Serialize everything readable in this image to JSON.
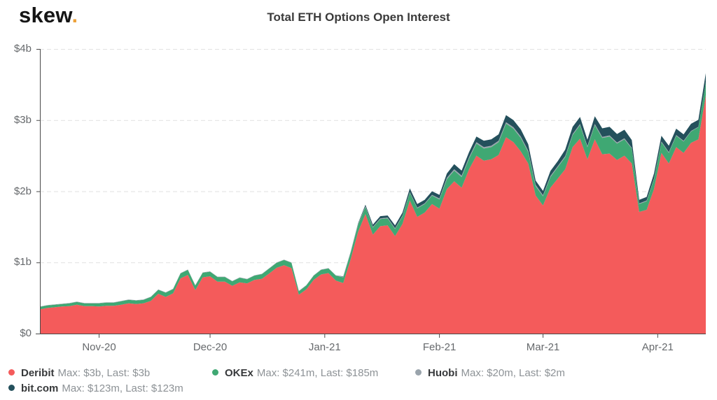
{
  "header": {
    "logo_text": "skew",
    "logo_dot": ".",
    "title": "Total ETH Options Open Interest"
  },
  "colors": {
    "deribit_red": "#f45b5b",
    "okex_green": "#3fa873",
    "huobi_gray": "#9aa4ac",
    "bitcom_teal": "#24505c",
    "logo_dot_orange": "#eda23b",
    "axis_line": "#4a4a4a",
    "grid_line": "#e1e1e1",
    "axis_text": "#66696c",
    "title_text": "#3b3b3b"
  },
  "legend": {
    "items": [
      {
        "id": "deribit",
        "name": "Deribit",
        "stats": "Max: $3b, Last: $3b",
        "color": "#f45b5b",
        "row": 0,
        "col": 0
      },
      {
        "id": "okex",
        "name": "OKEx",
        "stats": "Max: $241m, Last: $185m",
        "color": "#3fa873",
        "row": 0,
        "col": 1
      },
      {
        "id": "huobi",
        "name": "Huobi",
        "stats": "Max: $20m, Last: $2m",
        "color": "#9aa4ac",
        "row": 0,
        "col": 2
      },
      {
        "id": "bitcom",
        "name": "bit.com",
        "stats": "Max: $123m, Last: $123m",
        "color": "#24505c",
        "row": 1,
        "col": 0
      }
    ]
  },
  "chart_data": {
    "type": "area",
    "stacked": true,
    "title": "Total ETH Options Open Interest",
    "xlabel": "",
    "ylabel": "",
    "y_unit": "$ billions",
    "ylim": [
      0,
      4
    ],
    "grid": "horizontal-dashed",
    "legend_position": "bottom",
    "x_unit": "days since 2020-10-16",
    "x_step": 2,
    "x_span": 180,
    "x_ticks": [
      {
        "day": 16,
        "label": "Nov-20"
      },
      {
        "day": 46,
        "label": "Dec-20"
      },
      {
        "day": 77,
        "label": "Jan-21"
      },
      {
        "day": 108,
        "label": "Feb-21"
      },
      {
        "day": 136,
        "label": "Mar-21"
      },
      {
        "day": 167,
        "label": "Apr-21"
      }
    ],
    "y_ticks": [
      {
        "value": 0,
        "label": "$0"
      },
      {
        "value": 1,
        "label": "$1b"
      },
      {
        "value": 2,
        "label": "$2b"
      },
      {
        "value": 3,
        "label": "$3b"
      },
      {
        "value": 4,
        "label": "$4b"
      }
    ],
    "series": [
      {
        "name": "Deribit",
        "color": "#f45b5b",
        "max": "$3b",
        "last": "$3b",
        "values": [
          0.34,
          0.36,
          0.37,
          0.38,
          0.385,
          0.405,
          0.385,
          0.385,
          0.38,
          0.39,
          0.39,
          0.405,
          0.425,
          0.415,
          0.425,
          0.46,
          0.56,
          0.515,
          0.565,
          0.775,
          0.825,
          0.61,
          0.79,
          0.805,
          0.73,
          0.73,
          0.67,
          0.72,
          0.705,
          0.755,
          0.77,
          0.845,
          0.925,
          0.96,
          0.92,
          0.545,
          0.62,
          0.755,
          0.83,
          0.85,
          0.745,
          0.71,
          1.045,
          1.43,
          1.68,
          1.39,
          1.51,
          1.52,
          1.37,
          1.54,
          1.87,
          1.64,
          1.7,
          1.82,
          1.755,
          2.03,
          2.14,
          2.05,
          2.31,
          2.5,
          2.43,
          2.45,
          2.51,
          2.76,
          2.69,
          2.56,
          2.39,
          1.94,
          1.8,
          2.05,
          2.18,
          2.31,
          2.62,
          2.74,
          2.45,
          2.73,
          2.52,
          2.53,
          2.44,
          2.5,
          2.39,
          1.71,
          1.74,
          2.03,
          2.54,
          2.39,
          2.62,
          2.54,
          2.68,
          2.73,
          3.35
        ]
      },
      {
        "name": "OKEx",
        "color": "#3fa873",
        "max": "$241m",
        "last": "$185m",
        "values": [
          0.035,
          0.035,
          0.035,
          0.035,
          0.04,
          0.04,
          0.04,
          0.04,
          0.045,
          0.045,
          0.045,
          0.05,
          0.05,
          0.05,
          0.05,
          0.055,
          0.055,
          0.06,
          0.06,
          0.07,
          0.07,
          0.065,
          0.065,
          0.065,
          0.065,
          0.065,
          0.065,
          0.065,
          0.06,
          0.06,
          0.065,
          0.07,
          0.07,
          0.075,
          0.075,
          0.05,
          0.055,
          0.06,
          0.065,
          0.065,
          0.07,
          0.08,
          0.09,
          0.1,
          0.1,
          0.1,
          0.1,
          0.1,
          0.1,
          0.11,
          0.11,
          0.12,
          0.12,
          0.12,
          0.13,
          0.14,
          0.15,
          0.15,
          0.15,
          0.17,
          0.17,
          0.17,
          0.18,
          0.19,
          0.19,
          0.19,
          0.16,
          0.13,
          0.13,
          0.15,
          0.16,
          0.17,
          0.17,
          0.19,
          0.17,
          0.2,
          0.23,
          0.24,
          0.23,
          0.23,
          0.21,
          0.11,
          0.12,
          0.14,
          0.15,
          0.15,
          0.16,
          0.16,
          0.16,
          0.17,
          0.185
        ]
      },
      {
        "name": "Huobi",
        "color": "#9aa4ac",
        "max": "$20m",
        "last": "$2m",
        "values": [
          0.005,
          0.005,
          0.005,
          0.005,
          0.005,
          0.005,
          0.005,
          0.005,
          0.005,
          0.005,
          0.005,
          0.005,
          0.005,
          0.005,
          0.005,
          0.005,
          0.005,
          0.005,
          0.005,
          0.005,
          0.005,
          0.005,
          0.005,
          0.005,
          0.005,
          0.005,
          0.005,
          0.005,
          0.005,
          0.005,
          0.005,
          0.005,
          0.005,
          0.005,
          0.005,
          0.005,
          0.005,
          0.005,
          0.005,
          0.005,
          0.005,
          0.008,
          0.01,
          0.01,
          0.01,
          0.01,
          0.01,
          0.01,
          0.01,
          0.01,
          0.01,
          0.01,
          0.01,
          0.01,
          0.015,
          0.02,
          0.02,
          0.02,
          0.02,
          0.02,
          0.02,
          0.02,
          0.02,
          0.02,
          0.02,
          0.02,
          0.02,
          0.02,
          0.015,
          0.015,
          0.015,
          0.015,
          0.015,
          0.015,
          0.015,
          0.015,
          0.015,
          0.015,
          0.015,
          0.015,
          0.01,
          0.01,
          0.01,
          0.01,
          0.01,
          0.01,
          0.01,
          0.01,
          0.008,
          0.005,
          0.002
        ]
      },
      {
        "name": "bit.com",
        "color": "#24505c",
        "max": "$123m",
        "last": "$123m",
        "values": [
          0,
          0,
          0,
          0,
          0,
          0,
          0,
          0,
          0,
          0,
          0,
          0,
          0,
          0,
          0,
          0,
          0,
          0,
          0,
          0,
          0,
          0,
          0,
          0,
          0,
          0,
          0,
          0,
          0,
          0,
          0,
          0,
          0,
          0,
          0,
          0,
          0,
          0,
          0,
          0,
          0,
          0.005,
          0.005,
          0.01,
          0.02,
          0.03,
          0.03,
          0.03,
          0.04,
          0.04,
          0.05,
          0.05,
          0.05,
          0.05,
          0.05,
          0.06,
          0.07,
          0.07,
          0.07,
          0.08,
          0.09,
          0.09,
          0.09,
          0.1,
          0.1,
          0.1,
          0.09,
          0.06,
          0.06,
          0.07,
          0.07,
          0.09,
          0.1,
          0.1,
          0.09,
          0.11,
          0.12,
          0.12,
          0.12,
          0.12,
          0.11,
          0.05,
          0.05,
          0.07,
          0.08,
          0.09,
          0.09,
          0.09,
          0.1,
          0.1,
          0.123
        ]
      }
    ]
  }
}
